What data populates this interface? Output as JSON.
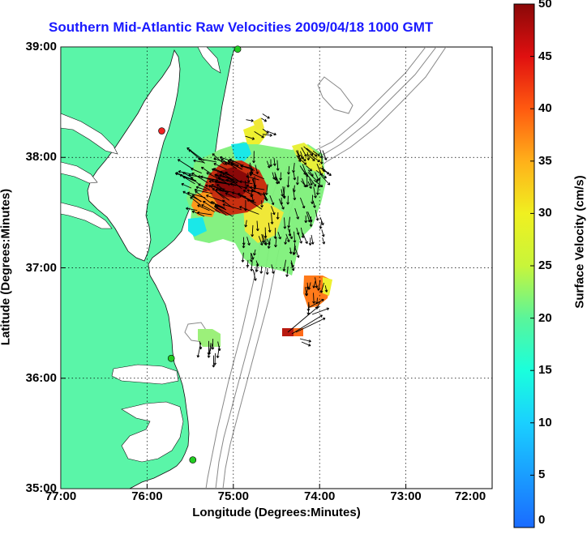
{
  "title": "Southern Mid-Atlantic Raw Velocities 2009/04/18 1000 GMT",
  "xlabel": "Longitude (Degrees:Minutes)",
  "ylabel": "Latitude (Degrees:Minutes)",
  "colorbar_label": "Surface Velocity (cm/s)",
  "x_ticks": [
    "77:00",
    "76:00",
    "75:00",
    "74:00",
    "73:00",
    "72:00"
  ],
  "y_ticks": [
    "39:00",
    "38:00",
    "37:00",
    "36:00",
    "35:00"
  ],
  "colorbar_ticks": [
    "50",
    "45",
    "40",
    "35",
    "30",
    "25",
    "20",
    "15",
    "10",
    "5",
    "0"
  ],
  "colors": {
    "land": "#5af5a8",
    "title": "#1a1aff",
    "bathymetry": "#888888",
    "site_active": "#22cc22",
    "site_inactive": "#ee2222"
  },
  "chart_data": {
    "type": "vector-field map",
    "xlim": [
      -77,
      -72
    ],
    "ylim": [
      35,
      39
    ],
    "colorbar_range": [
      0,
      50
    ],
    "grid": true,
    "sites": [
      {
        "lon": -74.95,
        "lat": 38.98,
        "status": "active"
      },
      {
        "lon": -75.83,
        "lat": 38.24,
        "status": "inactive"
      },
      {
        "lon": -75.72,
        "lat": 36.18,
        "status": "active"
      },
      {
        "lon": -75.47,
        "lat": 35.26,
        "status": "active"
      }
    ]
  }
}
